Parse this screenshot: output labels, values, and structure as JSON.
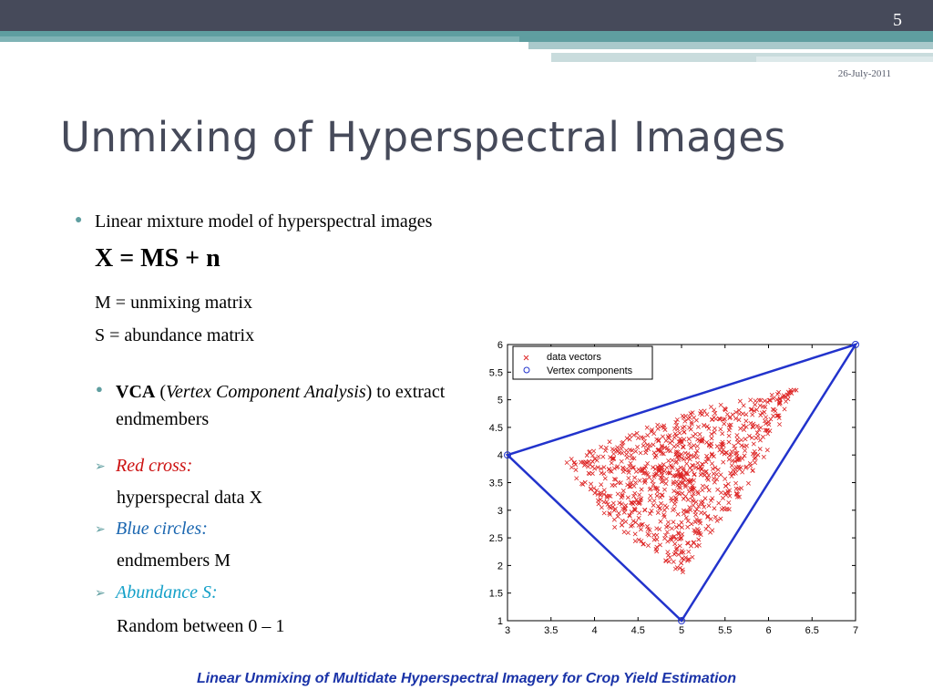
{
  "header": {
    "slide_number": "5",
    "date": "26-July-2011"
  },
  "title": "Unmixing of Hyperspectral Images",
  "bullets": {
    "linear_model": "Linear mixture model of hyperspectral images",
    "equation": "X = MS + n",
    "m_def": "M = unmixing matrix",
    "s_def": "S = abundance matrix",
    "vca_bold": "VCA",
    "vca_open": " (",
    "vca_italic": "Vertex Component Analysis",
    "vca_rest": ") to extract endmembers"
  },
  "legend_items": [
    {
      "label": "Red cross:",
      "desc": "hyperspecral data X"
    },
    {
      "label": "Blue circles:",
      "desc": "endmembers M"
    },
    {
      "label": "Abundance S:",
      "desc": "Random between 0 – 1"
    }
  ],
  "footer": "Linear Unmixing of Multidate Hyperspectral Imagery for Crop Yield Estimation",
  "colors": {
    "accent": "#5f9ea0",
    "title": "#464a5a",
    "red": "#cc1111",
    "blue": "#1a66b0",
    "cyan": "#14a0c8",
    "footer": "#1a33a8"
  },
  "chart_data": {
    "type": "scatter",
    "xlim": [
      3,
      7
    ],
    "ylim": [
      1,
      6
    ],
    "xticks": [
      "3",
      "3.5",
      "4",
      "4.5",
      "5",
      "5.5",
      "6",
      "6.5",
      "7"
    ],
    "yticks": [
      "1",
      "1.5",
      "2",
      "2.5",
      "3",
      "3.5",
      "4",
      "4.5",
      "5",
      "5.5",
      "6"
    ],
    "legend": [
      "data vectors",
      "Vertex components"
    ],
    "legend_position": "top-left",
    "vertices": [
      [
        3,
        4
      ],
      [
        7,
        6
      ],
      [
        5,
        1
      ]
    ],
    "series": [
      {
        "name": "data vectors",
        "marker": "x",
        "color": "#dd2222",
        "points": "random convex combinations of vertices"
      },
      {
        "name": "Vertex components",
        "marker": "o",
        "color": "#2233cc"
      }
    ]
  }
}
